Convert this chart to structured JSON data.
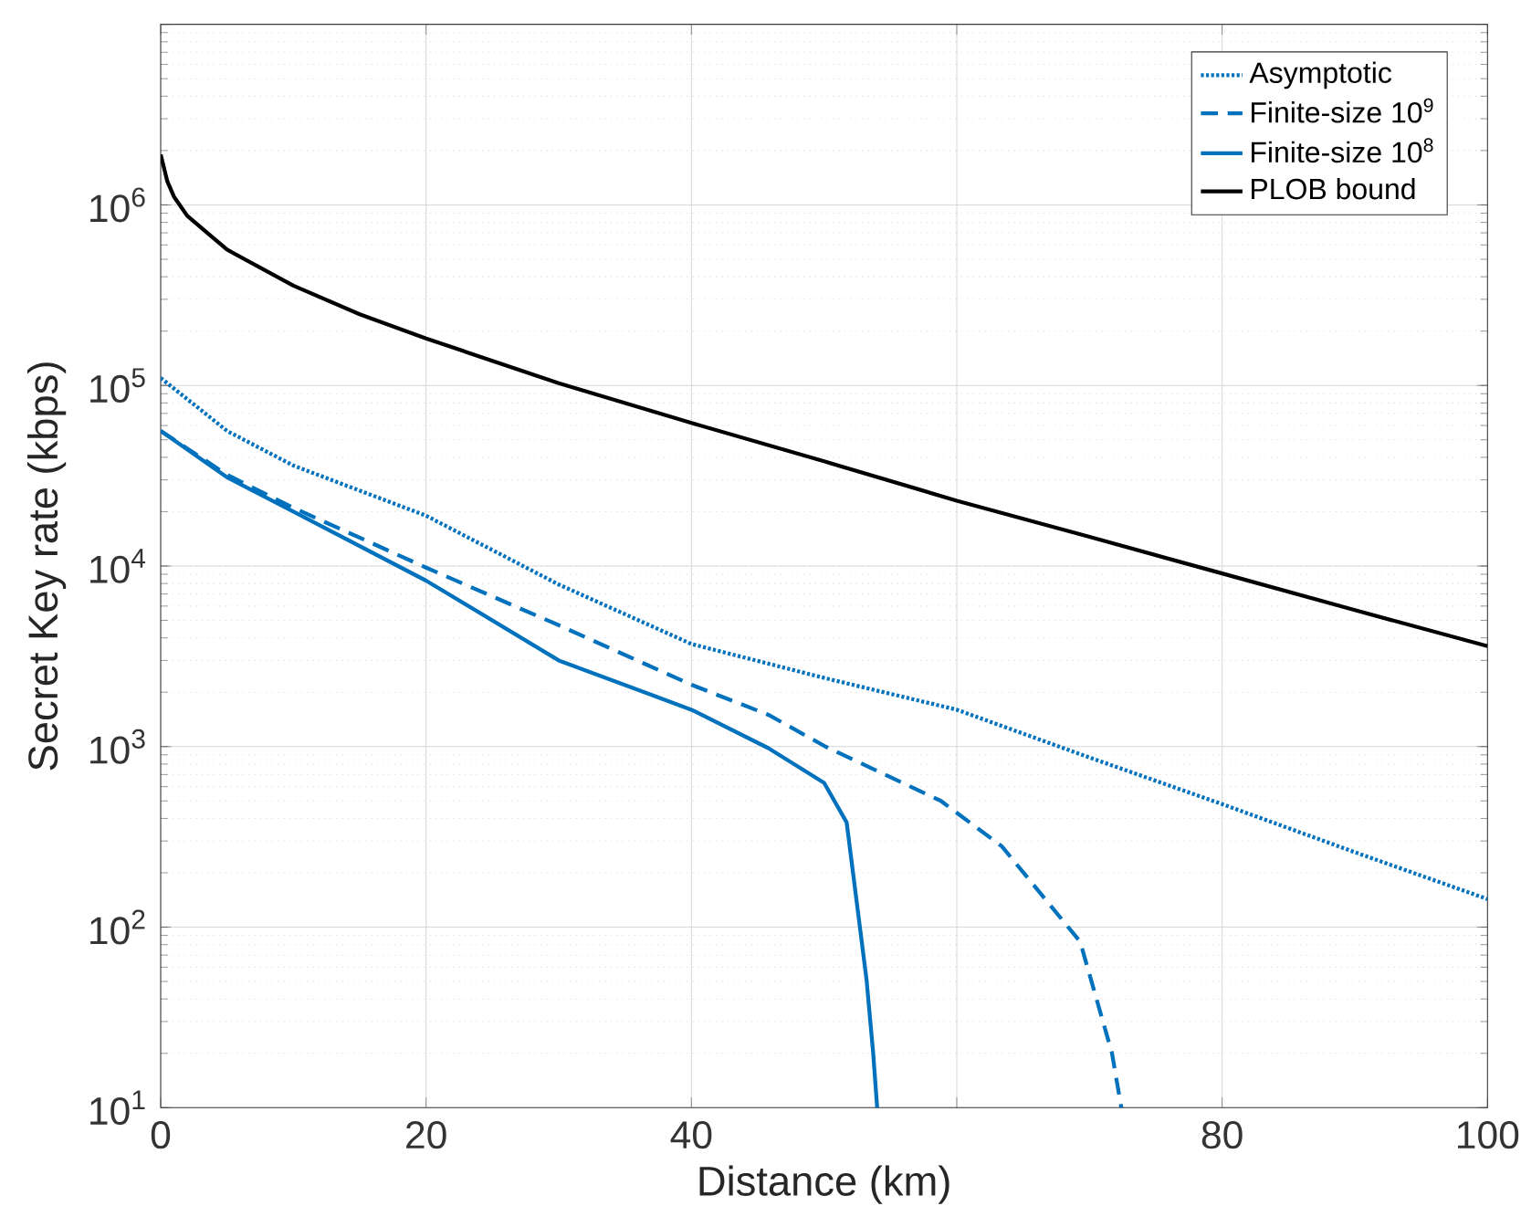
{
  "chart_data": {
    "type": "line",
    "xlabel": "Distance (km)",
    "ylabel": "Secret Key rate (kbps)",
    "log": "y",
    "grid": true,
    "legend": "top right",
    "marker": "none",
    "xlim": [
      0,
      100
    ],
    "xticks": [
      0,
      20,
      40,
      {
        "value": 60,
        "label": null
      },
      80,
      100
    ],
    "ylim": [
      10,
      10000000
    ],
    "yticks": [
      {
        "value": 10,
        "label": "10$^{1}$"
      },
      {
        "value": 100,
        "label": "10$^{2}$"
      },
      {
        "value": 1000,
        "label": "10$^{3}$"
      },
      {
        "value": 10000,
        "label": "10$^{4}$"
      },
      {
        "value": 100000,
        "label": "10$^{5}$"
      },
      {
        "value": 1000000,
        "label": "10$^{6}$"
      },
      {
        "value": 10000000,
        "label": null
      }
    ],
    "series": [
      {
        "name": "Asymptotic",
        "color": "#0072bd",
        "line_style": "dotted",
        "x": [
          0,
          5,
          10,
          20,
          30,
          40,
          50,
          60,
          70,
          80,
          90,
          100
        ],
        "values": [
          110000,
          56000,
          36000,
          19000,
          7900,
          3700,
          2400,
          1600,
          870,
          480,
          260,
          143
        ]
      },
      {
        "name": "Finite-size 10$^{9}$",
        "color": "#0072bd",
        "line_style": "dashed",
        "x": [
          0,
          5,
          10,
          20,
          30,
          40,
          45.8,
          50.1,
          58.8,
          63.4,
          69.3,
          71.7,
          72.4
        ],
        "values": [
          56000,
          32000,
          21000,
          9800,
          4700,
          2200,
          1500,
          1000,
          500,
          280,
          83,
          20,
          10
        ]
      },
      {
        "name": "Finite-size 10$^{8}$",
        "color": "#0072bd",
        "line_style": "solid",
        "x": [
          0,
          5,
          10,
          20,
          30,
          40,
          45.8,
          50,
          51.7,
          53.2,
          53.7,
          54
        ],
        "values": [
          56000,
          31000,
          20000,
          8300,
          3000,
          1600,
          980,
          630,
          380,
          51,
          20,
          10
        ]
      },
      {
        "name": "PLOB bound",
        "color": "#000000",
        "line_style": "solid",
        "x": [
          0,
          0.5,
          1,
          2,
          5,
          10,
          15,
          20,
          30,
          40,
          50,
          60,
          70,
          80,
          90,
          100
        ],
        "values": [
          1900000,
          1350000,
          1110000,
          870000,
          565000,
          357000,
          248000,
          182000,
          103000,
          62000,
          38000,
          23000,
          14500,
          9100,
          5700,
          3600
        ]
      }
    ]
  }
}
